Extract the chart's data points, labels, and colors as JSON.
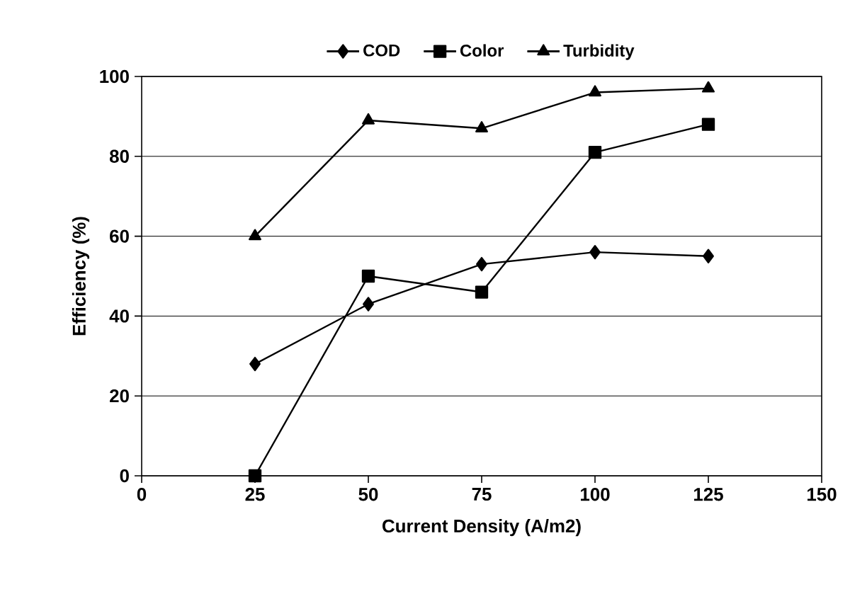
{
  "chart_data": {
    "type": "line",
    "xlabel": "Current Density (A/m2)",
    "ylabel": "Efficiency (%)",
    "x": [
      25,
      50,
      75,
      100,
      125
    ],
    "series": [
      {
        "name": "COD",
        "color": "#000000",
        "marker": "diamond",
        "values": [
          28,
          43,
          53,
          56,
          55
        ]
      },
      {
        "name": "Color",
        "color": "#000000",
        "marker": "square",
        "values": [
          0,
          50,
          46,
          81,
          88
        ]
      },
      {
        "name": "Turbidity",
        "color": "#000000",
        "marker": "triangle",
        "values": [
          60,
          89,
          87,
          96,
          97
        ]
      }
    ],
    "xlim": [
      0,
      150
    ],
    "xticks": [
      0,
      25,
      50,
      75,
      100,
      125,
      150
    ],
    "ylim": [
      0,
      100
    ],
    "yticks": [
      0,
      20,
      40,
      60,
      80,
      100
    ],
    "grid": "y",
    "legend": "top",
    "line_style": "solid"
  }
}
